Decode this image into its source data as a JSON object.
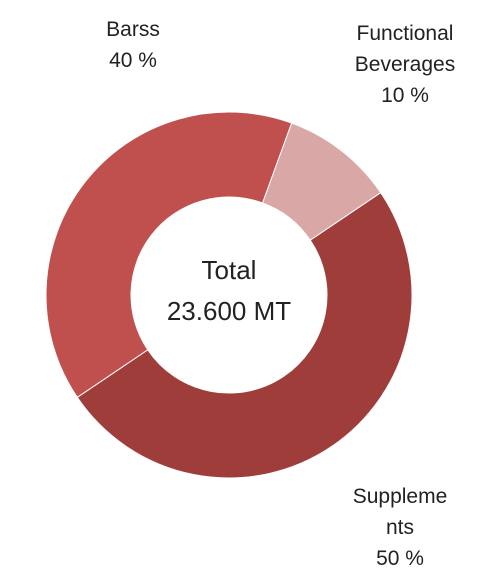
{
  "chart_data": {
    "type": "donut",
    "categories": [
      "Functional Beverages",
      "Suppleme nts",
      "Barss"
    ],
    "values": [
      10,
      50,
      40
    ],
    "value_labels": [
      "10 %",
      "50 %",
      "40 %"
    ],
    "colors": [
      "#d9a7a6",
      "#9f3d3b",
      "#c0504d"
    ],
    "annotations": [
      "Total",
      "23.600 MT"
    ]
  }
}
